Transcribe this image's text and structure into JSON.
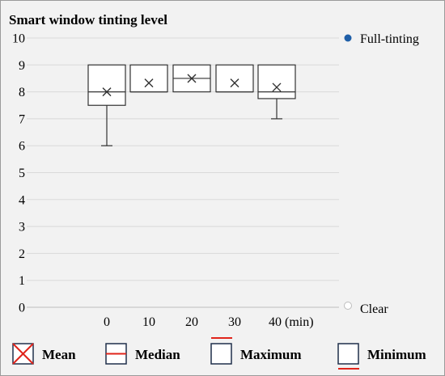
{
  "chart_data": {
    "type": "box",
    "title": "Smart window tinting level",
    "xlabel": "",
    "ylabel": "",
    "categories": [
      "0",
      "10",
      "20",
      "30",
      "40 (min)"
    ],
    "ylim": [
      0,
      10
    ],
    "yticks": [
      "0",
      "1",
      "2",
      "3",
      "4",
      "5",
      "6",
      "7",
      "8",
      "9",
      "10"
    ],
    "grid": true,
    "boxes": [
      {
        "category": "0",
        "min": 6,
        "q1": 7.5,
        "median": 8,
        "q3": 9,
        "max": 9,
        "mean": 8
      },
      {
        "category": "10",
        "min": 8,
        "q1": 8,
        "median": 8,
        "q3": 9,
        "max": 9,
        "mean": 8.33
      },
      {
        "category": "20",
        "min": 8,
        "q1": 8,
        "median": 8.5,
        "q3": 9,
        "max": 9,
        "mean": 8.5
      },
      {
        "category": "30",
        "min": 8,
        "q1": 8,
        "median": 8,
        "q3": 9,
        "max": 9,
        "mean": 8.33
      },
      {
        "category": "40 (min)",
        "min": 7,
        "q1": 7.75,
        "median": 8,
        "q3": 9,
        "max": 9,
        "mean": 8.17
      }
    ],
    "top_label": "Full-tinting",
    "bottom_label": "Clear",
    "legend": [
      {
        "key": "mean",
        "label": "Mean"
      },
      {
        "key": "median",
        "label": "Median"
      },
      {
        "key": "maximum",
        "label": "Maximum"
      },
      {
        "key": "minimum",
        "label": "Minimum"
      }
    ],
    "colors": {
      "box": "#333333",
      "grid": "#d9d9d9",
      "background": "#f2f2f2",
      "full_dot": "#1f5fa8",
      "clear_dot": "#ffffff",
      "legend_red": "#e0241b",
      "legend_navy": "#1f2f4a"
    }
  }
}
